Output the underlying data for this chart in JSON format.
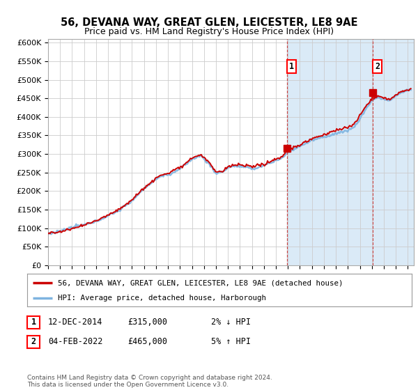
{
  "title": "56, DEVANA WAY, GREAT GLEN, LEICESTER, LE8 9AE",
  "subtitle": "Price paid vs. HM Land Registry's House Price Index (HPI)",
  "ylabel_ticks": [
    "£0",
    "£50K",
    "£100K",
    "£150K",
    "£200K",
    "£250K",
    "£300K",
    "£350K",
    "£400K",
    "£450K",
    "£500K",
    "£550K",
    "£600K"
  ],
  "ytick_vals": [
    0,
    50000,
    100000,
    150000,
    200000,
    250000,
    300000,
    350000,
    400000,
    450000,
    500000,
    550000,
    600000
  ],
  "ylim": [
    0,
    610000
  ],
  "xlim_start": 1995.0,
  "xlim_end": 2025.5,
  "hpi_color": "#7eb4e0",
  "price_color": "#cc0000",
  "marker1_year": 2014.95,
  "marker1_value": 315000,
  "marker2_year": 2022.09,
  "marker2_value": 465000,
  "legend_label1": "56, DEVANA WAY, GREAT GLEN, LEICESTER, LE8 9AE (detached house)",
  "legend_label2": "HPI: Average price, detached house, Harborough",
  "footer": "Contains HM Land Registry data © Crown copyright and database right 2024.\nThis data is licensed under the Open Government Licence v3.0.",
  "background_color": "#ffffff",
  "grid_color": "#cccccc",
  "shaded_region_color": "#daeaf7",
  "shaded_x_start": 2014.92,
  "shaded_x_end": 2025.5
}
